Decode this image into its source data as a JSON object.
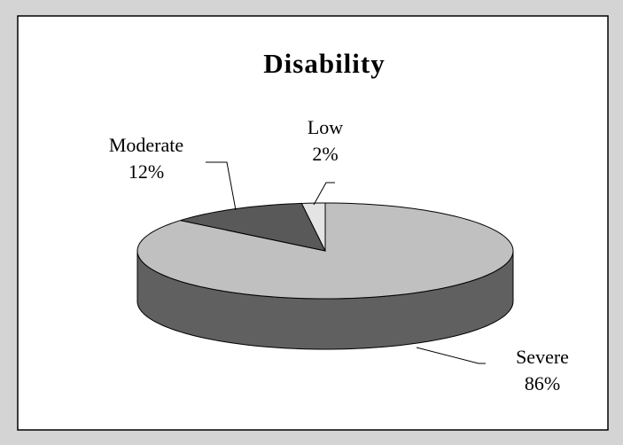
{
  "chart_data": {
    "type": "pie3d",
    "title": "Disability",
    "categories": [
      "Severe",
      "Moderate",
      "Low"
    ],
    "values": [
      86,
      12,
      2
    ],
    "value_labels": [
      "86%",
      "12%",
      "2%"
    ],
    "colors": [
      "#c0c0c0",
      "#595959",
      "#e4e4e4"
    ]
  }
}
